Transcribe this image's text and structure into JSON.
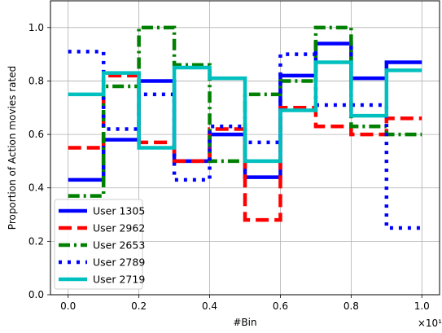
{
  "chart_data": {
    "type": "line",
    "step": "post",
    "xlabel": "#Bin",
    "ylabel": "Proportion of Action movies rated",
    "x_offset_text": "×10¹",
    "xlim": [
      -0.05,
      1.05
    ],
    "ylim": [
      0.0,
      1.1
    ],
    "xticks": [
      0.0,
      0.2,
      0.4,
      0.6,
      0.8,
      1.0
    ],
    "xtick_labels": [
      "0.0",
      "0.2",
      "0.4",
      "0.6",
      "0.8",
      "1.0"
    ],
    "yticks": [
      0.0,
      0.2,
      0.4,
      0.6,
      0.8,
      1.0
    ],
    "ytick_labels": [
      "0.0",
      "0.2",
      "0.4",
      "0.6",
      "0.8",
      "1.0"
    ],
    "grid": true,
    "legend_position": "lower left",
    "x": [
      0.0,
      0.1,
      0.2,
      0.3,
      0.4,
      0.5,
      0.6,
      0.7,
      0.8,
      0.9,
      1.0
    ],
    "series": [
      {
        "name": "User 1305",
        "color": "#0000ff",
        "dash": "solid",
        "values": [
          0.43,
          0.58,
          0.8,
          0.5,
          0.6,
          0.44,
          0.82,
          0.94,
          0.81,
          0.87,
          0.87
        ]
      },
      {
        "name": "User 2962",
        "color": "#ff0000",
        "dash": "dashed",
        "values": [
          0.55,
          0.82,
          0.57,
          0.5,
          0.62,
          0.28,
          0.7,
          0.63,
          0.6,
          0.66,
          0.66
        ]
      },
      {
        "name": "User 2653",
        "color": "#008000",
        "dash": "dashdot",
        "values": [
          0.37,
          0.78,
          1.0,
          0.86,
          0.5,
          0.75,
          0.8,
          1.0,
          0.63,
          0.6,
          0.6
        ]
      },
      {
        "name": "User 2789",
        "color": "#0000ff",
        "dash": "dotted",
        "values": [
          0.91,
          0.62,
          0.75,
          0.43,
          0.63,
          0.57,
          0.9,
          0.71,
          0.71,
          0.25,
          0.25
        ]
      },
      {
        "name": "User 2719",
        "color": "#00bfbf",
        "dash": "solid",
        "values": [
          0.75,
          0.83,
          0.55,
          0.85,
          0.81,
          0.5,
          0.69,
          0.87,
          0.67,
          0.84,
          0.84
        ]
      }
    ]
  }
}
